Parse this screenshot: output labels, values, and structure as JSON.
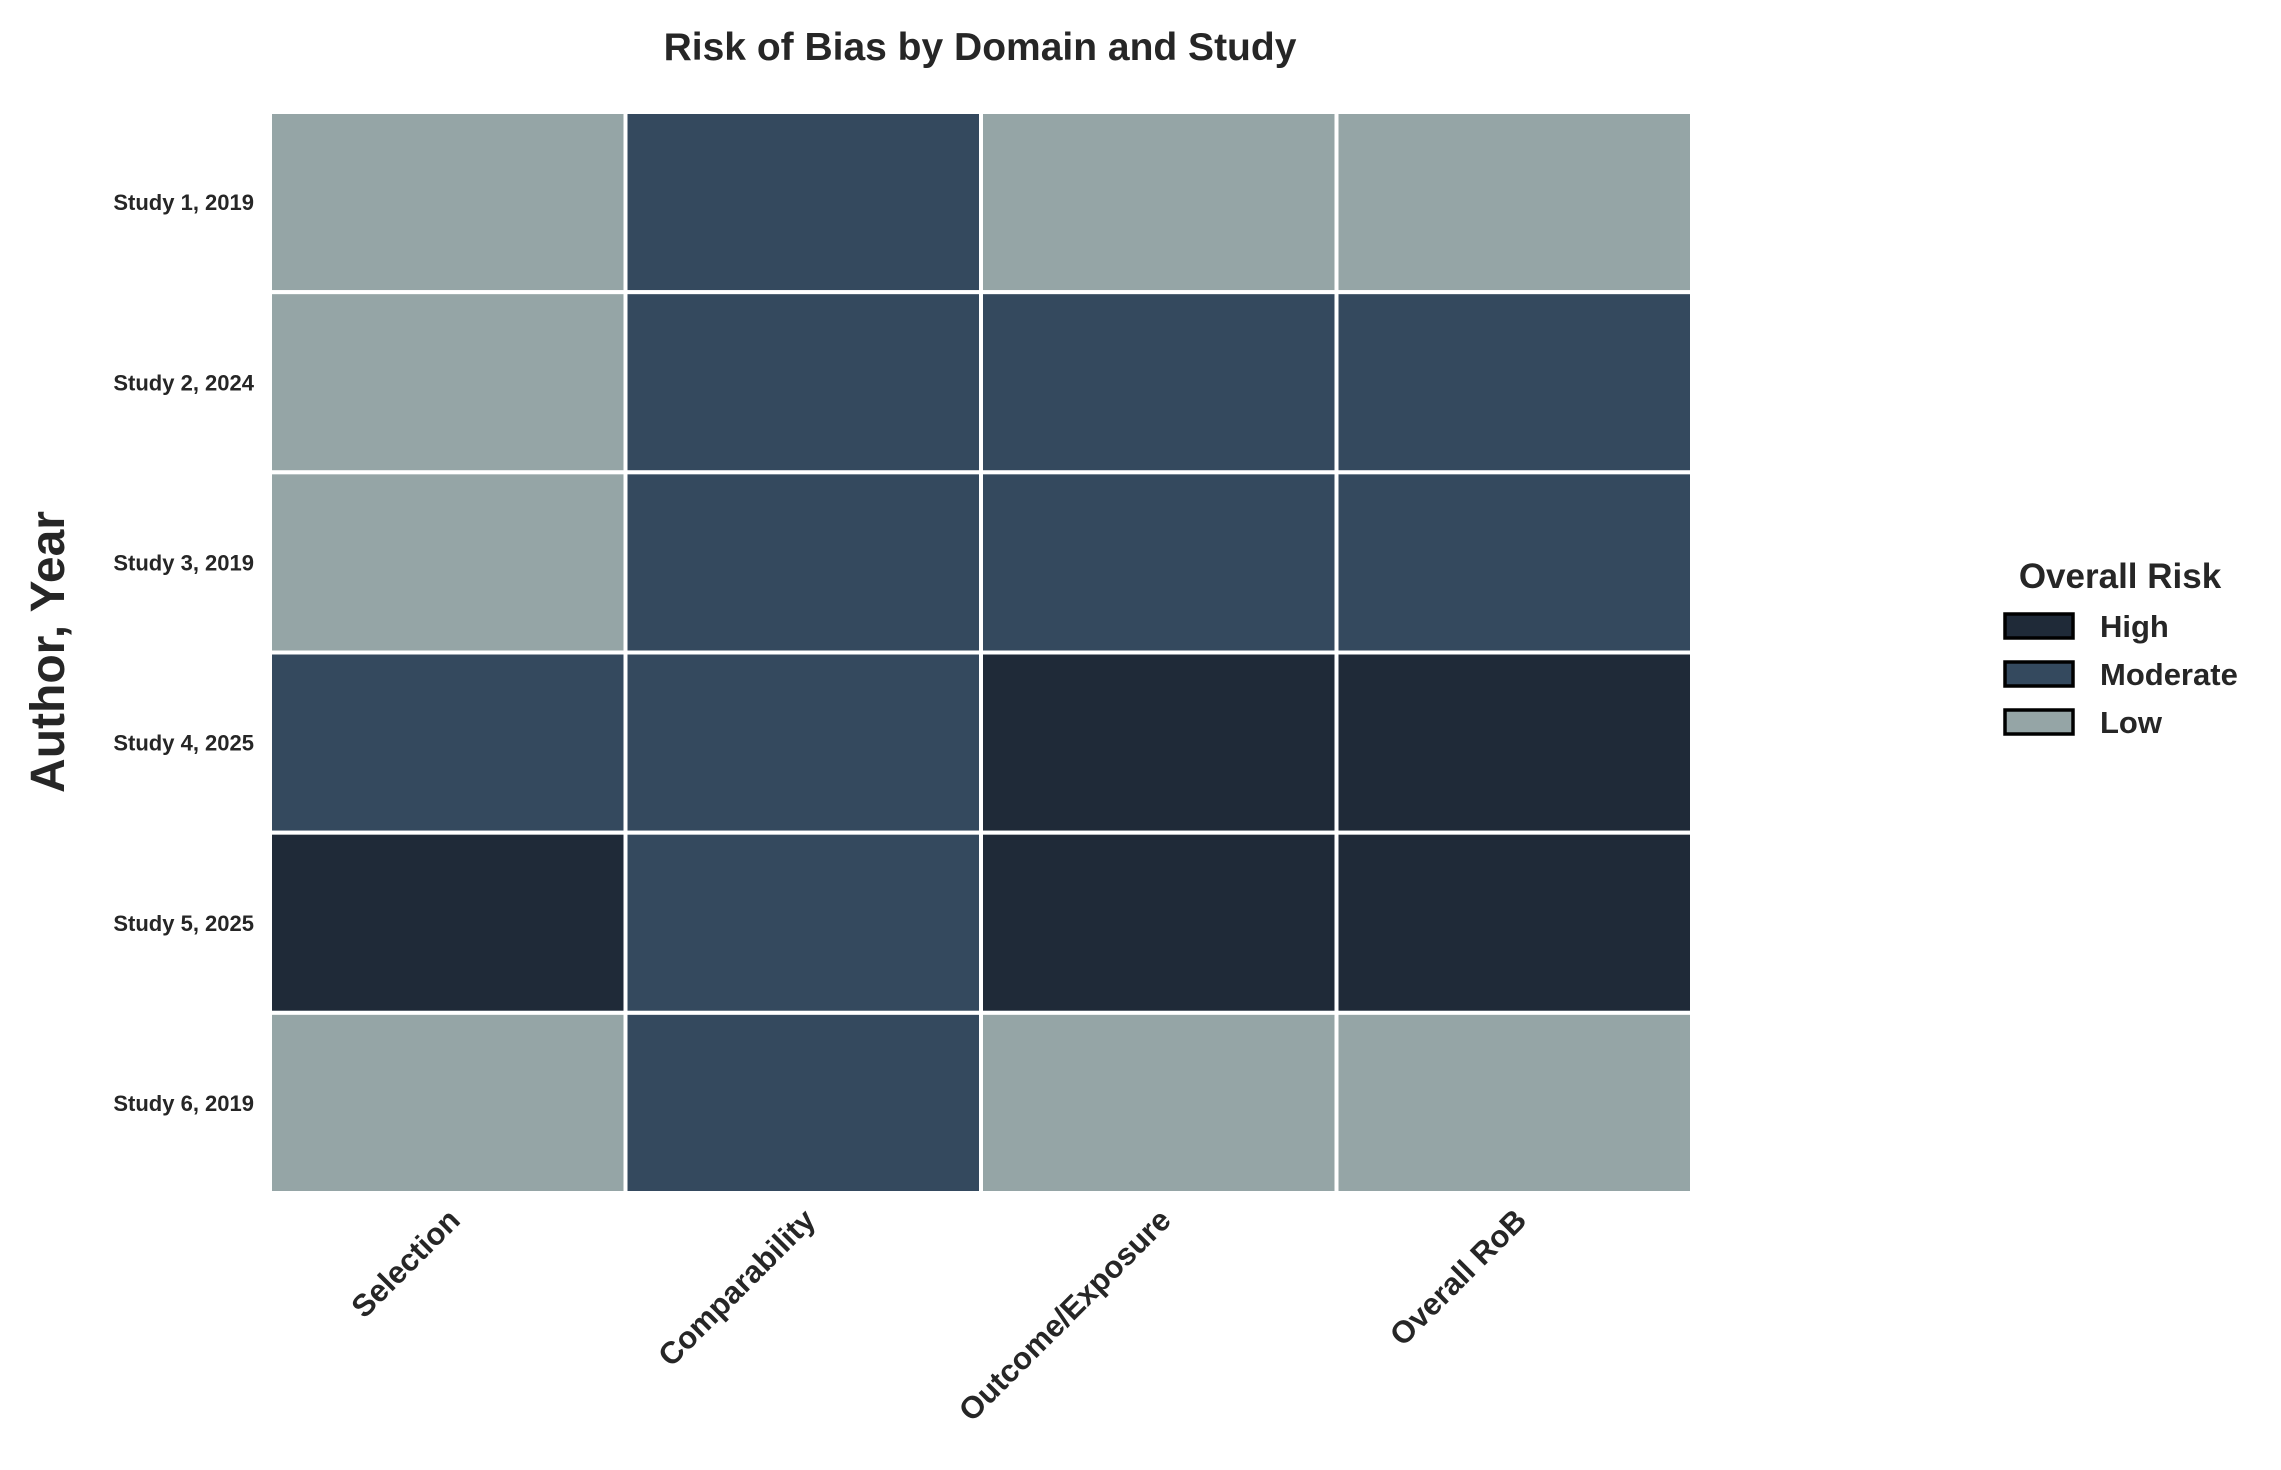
{
  "chart_data": {
    "type": "heatmap",
    "title": "Risk of Bias by Domain and Study",
    "ylabel": "Author, Year",
    "xlabel": "",
    "columns": [
      "Selection",
      "Comparability",
      "Outcome/Exposure",
      "Overall RoB"
    ],
    "rows": [
      "Study 1, 2019",
      "Study 2, 2024",
      "Study 3, 2019",
      "Study 4, 2025",
      "Study 5, 2025",
      "Study 6, 2019"
    ],
    "values": [
      [
        "Low",
        "Moderate",
        "Low",
        "Low"
      ],
      [
        "Low",
        "Moderate",
        "Moderate",
        "Moderate"
      ],
      [
        "Low",
        "Moderate",
        "Moderate",
        "Moderate"
      ],
      [
        "Moderate",
        "Moderate",
        "High",
        "High"
      ],
      [
        "High",
        "Moderate",
        "High",
        "High"
      ],
      [
        "Low",
        "Moderate",
        "Low",
        "Low"
      ]
    ],
    "legend": {
      "title": "Overall Risk",
      "position": "right",
      "entries": [
        {
          "label": "High",
          "color": "#1f2a38"
        },
        {
          "label": "Moderate",
          "color": "#34495e"
        },
        {
          "label": "Low",
          "color": "#95a5a6"
        }
      ]
    },
    "cell_border_color": "#ffffff",
    "grid": false
  }
}
